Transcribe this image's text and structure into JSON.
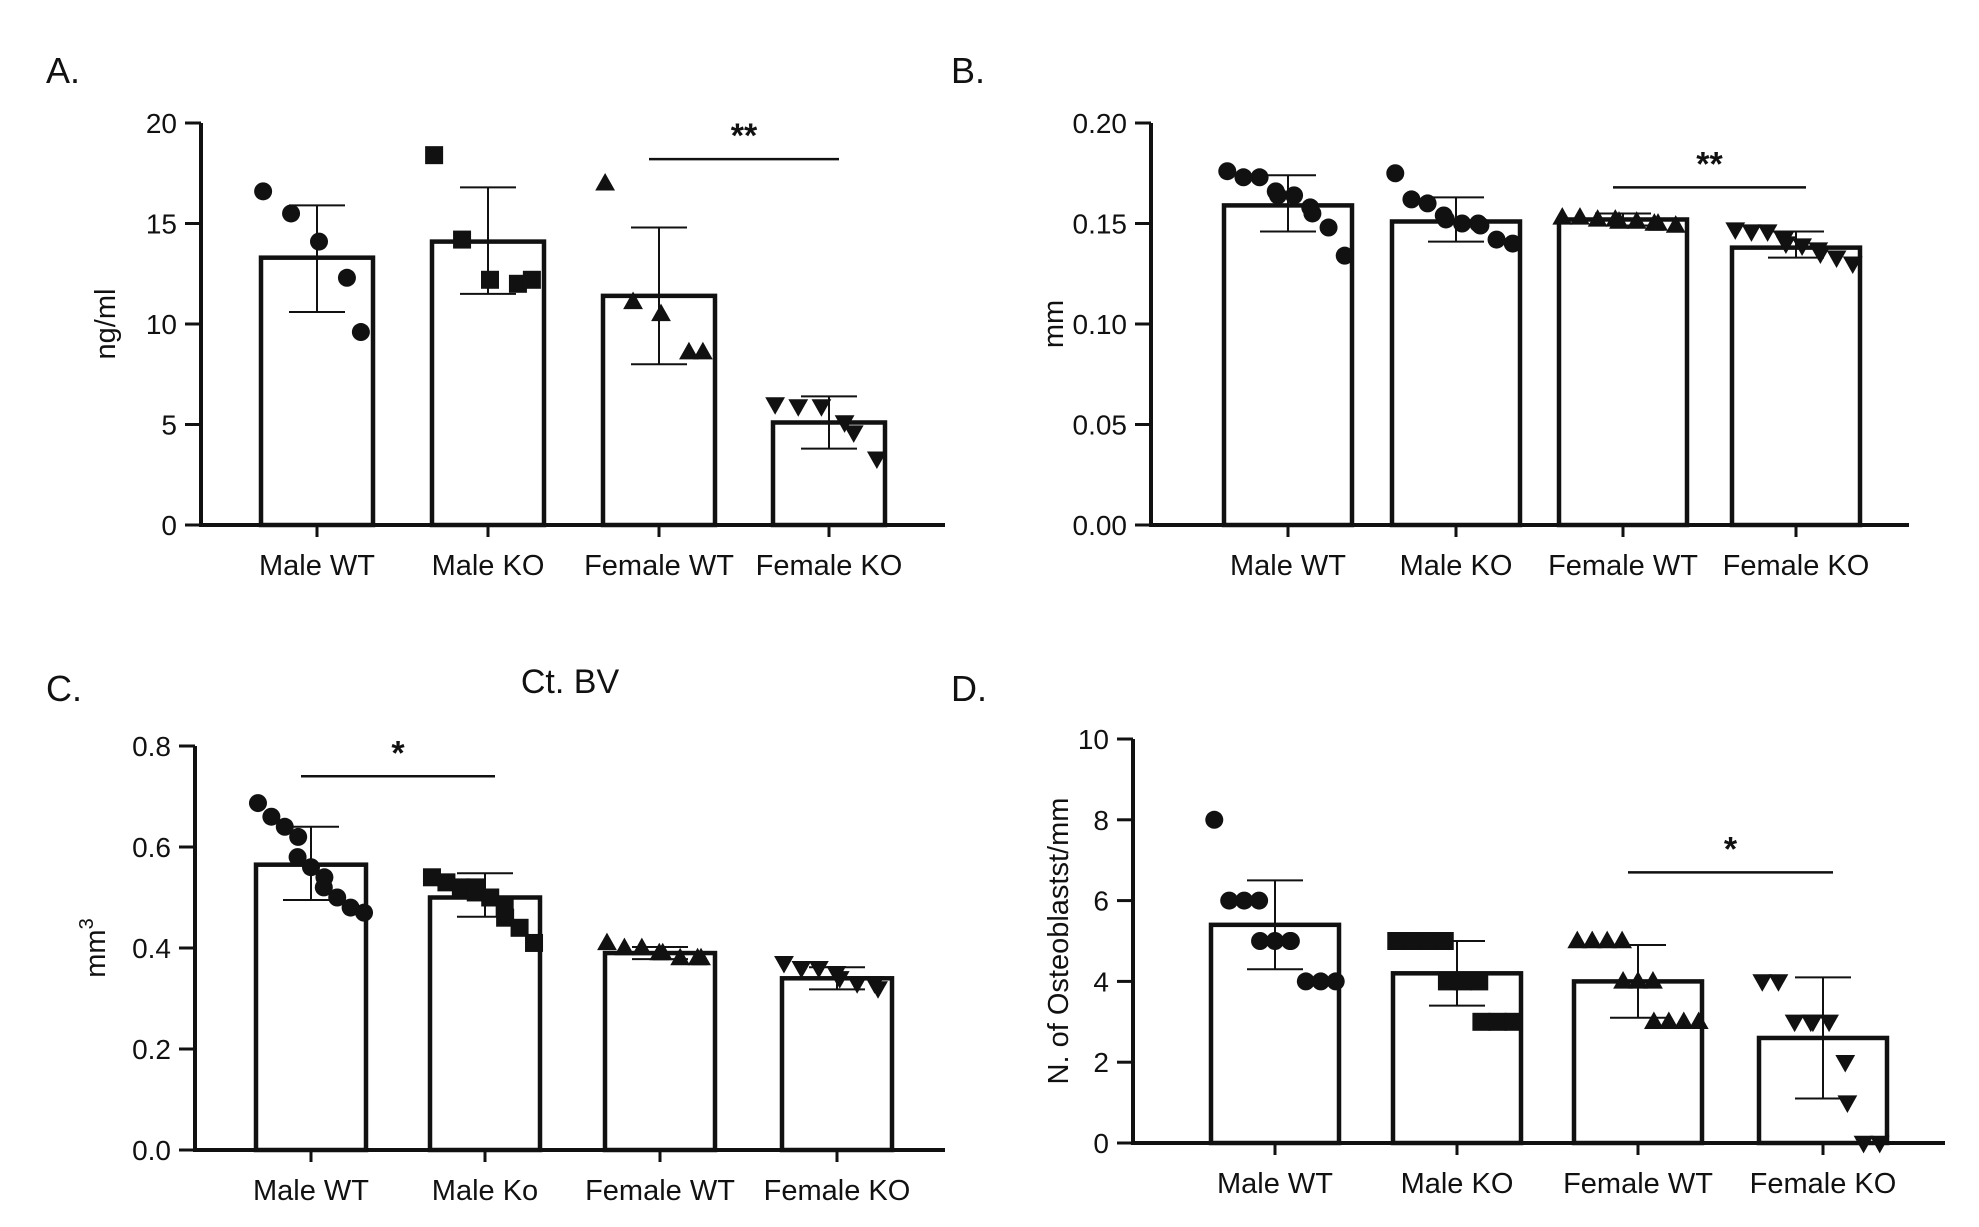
{
  "panels": {
    "a": {
      "label": "A."
    },
    "b": {
      "label": "B."
    },
    "c": {
      "label": "C."
    },
    "d": {
      "label": "D."
    }
  },
  "chart_data": [
    {
      "type": "bar",
      "panel": "A.",
      "title": "",
      "ylabel": "ng/ml",
      "xlabel": "",
      "ylim": [
        0,
        20
      ],
      "yticks": [
        0,
        5,
        10,
        15,
        20
      ],
      "ytick_labels": [
        "0",
        "5",
        "10",
        "15",
        "20"
      ],
      "categories": [
        "Male WT",
        "Male KO",
        "Female WT",
        "Female KO"
      ],
      "values": [
        13.3,
        14.1,
        11.4,
        5.1
      ],
      "error_low": [
        10.6,
        11.5,
        8.0,
        3.8
      ],
      "error_high": [
        15.9,
        16.8,
        14.8,
        6.4
      ],
      "markers": [
        "circle",
        "square",
        "triangle-up",
        "triangle-down"
      ],
      "points": [
        [
          16.6,
          15.5,
          14.1,
          12.3,
          9.6
        ],
        [
          18.4,
          14.2,
          12.2,
          12.0,
          12.2
        ],
        [
          17.0,
          11.1,
          10.5,
          8.6,
          8.6
        ],
        [
          6.0,
          5.9,
          5.9,
          5.1,
          4.6,
          3.3
        ]
      ],
      "significance": [
        {
          "from": "Female WT",
          "to": "Female KO",
          "label": "**",
          "y": 18.2
        }
      ]
    },
    {
      "type": "bar",
      "panel": "B.",
      "title": "",
      "ylabel": "mm",
      "xlabel": "",
      "ylim": [
        0,
        0.2
      ],
      "yticks": [
        0,
        0.05,
        0.1,
        0.15,
        0.2
      ],
      "ytick_labels": [
        "0.00",
        "0.05",
        "0.10",
        "0.15",
        "0.20"
      ],
      "categories": [
        "Male WT",
        "Male KO",
        "Female WT",
        "Female KO"
      ],
      "values": [
        0.159,
        0.151,
        0.152,
        0.138
      ],
      "error_low": [
        0.146,
        0.141,
        0.149,
        0.133
      ],
      "error_high": [
        0.174,
        0.163,
        0.155,
        0.146
      ],
      "markers": [
        "circle",
        "circle",
        "triangle-up",
        "triangle-down"
      ],
      "points": [
        [
          0.176,
          0.173,
          0.173,
          0.166,
          0.164,
          0.164,
          0.158,
          0.155,
          0.148,
          0.134
        ],
        [
          0.175,
          0.162,
          0.16,
          0.154,
          0.152,
          0.15,
          0.15,
          0.149,
          0.142,
          0.14
        ],
        [
          0.153,
          0.153,
          0.152,
          0.152,
          0.151,
          0.151,
          0.15,
          0.15,
          0.149
        ],
        [
          0.147,
          0.146,
          0.146,
          0.142,
          0.14,
          0.139,
          0.137,
          0.135,
          0.133,
          0.13
        ]
      ],
      "significance": [
        {
          "from": "Female WT",
          "to": "Female KO",
          "label": "**",
          "y": 0.168
        }
      ]
    },
    {
      "type": "bar",
      "panel": "C.",
      "title": "Ct. BV",
      "ylabel": "mm3",
      "ylabel_base": "mm",
      "ylabel_sup": "3",
      "xlabel": "",
      "ylim": [
        0,
        0.8
      ],
      "yticks": [
        0,
        0.2,
        0.4,
        0.6,
        0.8
      ],
      "ytick_labels": [
        "0.0",
        "0.2",
        "0.4",
        "0.6",
        "0.8"
      ],
      "categories": [
        "Male WT",
        "Male Ko",
        "Female WT",
        "Female KO"
      ],
      "values": [
        0.565,
        0.5,
        0.39,
        0.34
      ],
      "error_low": [
        0.495,
        0.462,
        0.378,
        0.318
      ],
      "error_high": [
        0.64,
        0.548,
        0.402,
        0.362
      ],
      "markers": [
        "circle",
        "square",
        "triangle-up",
        "triangle-down"
      ],
      "points": [
        [
          0.687,
          0.66,
          0.64,
          0.62,
          0.58,
          0.56,
          0.54,
          0.52,
          0.5,
          0.48,
          0.47
        ],
        [
          0.54,
          0.53,
          0.52,
          0.52,
          0.51,
          0.5,
          0.48,
          0.46,
          0.44,
          0.41
        ],
        [
          0.41,
          0.4,
          0.4,
          0.39,
          0.39,
          0.38,
          0.38,
          0.38
        ],
        [
          0.37,
          0.36,
          0.36,
          0.35,
          0.34,
          0.33,
          0.33,
          0.32
        ]
      ],
      "significance": [
        {
          "from": "Male WT",
          "to": "Male Ko",
          "label": "*",
          "y": 0.74
        }
      ]
    },
    {
      "type": "bar",
      "panel": "D.",
      "title": "",
      "ylabel": "N. of Osteoblastst/mm",
      "xlabel": "",
      "ylim": [
        0,
        10
      ],
      "yticks": [
        0,
        2,
        4,
        6,
        8,
        10
      ],
      "ytick_labels": [
        "0",
        "2",
        "4",
        "6",
        "8",
        "10"
      ],
      "categories": [
        "Male WT",
        "Male KO",
        "Female WT",
        "Female KO"
      ],
      "values": [
        5.4,
        4.2,
        4.0,
        2.6
      ],
      "error_low": [
        4.3,
        3.4,
        3.1,
        1.1
      ],
      "error_high": [
        6.5,
        5.0,
        4.9,
        4.1
      ],
      "markers": [
        "circle",
        "square",
        "triangle-up",
        "triangle-down"
      ],
      "points": [
        [
          8.0,
          6.0,
          6.0,
          6.0,
          5.0,
          5.0,
          5.0,
          5.0,
          4.0,
          4.0,
          4.0
        ],
        [
          5.0,
          5.0,
          5.0,
          5.0,
          4.0,
          4.0,
          4.0,
          3.0,
          3.0,
          3.0
        ],
        [
          5.0,
          5.0,
          5.0,
          5.0,
          4.0,
          4.0,
          4.0,
          3.0,
          3.0,
          3.0,
          3.0
        ],
        [
          4.0,
          4.0,
          3.0,
          3.0,
          3.0,
          3.0,
          2.0,
          1.0,
          0.0,
          0.0
        ]
      ],
      "significance": [
        {
          "from": "Female WT",
          "to": "Female KO",
          "label": "*",
          "y": 6.7
        }
      ]
    }
  ]
}
